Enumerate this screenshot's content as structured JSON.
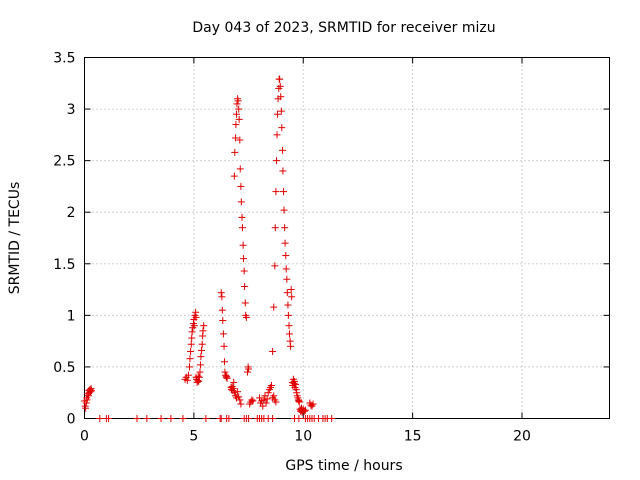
{
  "chart_data": {
    "type": "scatter",
    "title": "Day 043 of 2023, SRMTID for receiver mizu",
    "xlabel": "GPS time / hours",
    "ylabel": "SRMTID / TECUs",
    "xlim": [
      0,
      24
    ],
    "ylim": [
      0,
      3.5
    ],
    "xticks": [
      0,
      5,
      10,
      15,
      20
    ],
    "xtick_labels": [
      "0",
      "5",
      "10",
      "15",
      "20"
    ],
    "yticks": [
      0,
      0.5,
      1,
      1.5,
      2,
      2.5,
      3,
      3.5
    ],
    "ytick_labels": [
      "0",
      "0.5",
      "1",
      "1.5",
      "2",
      "2.5",
      "3",
      "3.5"
    ],
    "grid": true,
    "marker": "+",
    "color": "#e00000",
    "series": [
      {
        "name": "SRMTID",
        "points": [
          [
            0.0,
            0.17
          ],
          [
            0.03,
            0.12
          ],
          [
            0.05,
            0.1
          ],
          [
            0.08,
            0.15
          ],
          [
            0.1,
            0.2
          ],
          [
            0.12,
            0.18
          ],
          [
            0.15,
            0.24
          ],
          [
            0.18,
            0.22
          ],
          [
            0.2,
            0.27
          ],
          [
            0.22,
            0.25
          ],
          [
            0.25,
            0.28
          ],
          [
            0.28,
            0.26
          ],
          [
            0.3,
            0.29
          ],
          [
            0.32,
            0.27
          ],
          [
            0.7,
            0.0
          ],
          [
            1.0,
            0.0
          ],
          [
            1.1,
            0.0
          ],
          [
            2.4,
            0.0
          ],
          [
            2.85,
            0.0
          ],
          [
            3.5,
            0.0
          ],
          [
            3.95,
            0.0
          ],
          [
            4.5,
            0.0
          ],
          [
            4.6,
            0.38
          ],
          [
            4.65,
            0.4
          ],
          [
            4.7,
            0.37
          ],
          [
            4.75,
            0.42
          ],
          [
            4.8,
            0.5
          ],
          [
            4.82,
            0.58
          ],
          [
            4.85,
            0.65
          ],
          [
            4.88,
            0.72
          ],
          [
            4.9,
            0.78
          ],
          [
            4.92,
            0.84
          ],
          [
            4.95,
            0.88
          ],
          [
            4.98,
            0.92
          ],
          [
            5.0,
            0.96
          ],
          [
            5.02,
            0.9
          ],
          [
            5.05,
            1.0
          ],
          [
            5.08,
            1.03
          ],
          [
            5.1,
            0.98
          ],
          [
            5.1,
            0.4
          ],
          [
            5.12,
            0.38
          ],
          [
            5.15,
            0.35
          ],
          [
            5.18,
            0.37
          ],
          [
            5.2,
            0.41
          ],
          [
            5.22,
            0.36
          ],
          [
            5.25,
            0.4
          ],
          [
            5.28,
            0.45
          ],
          [
            5.3,
            0.52
          ],
          [
            5.32,
            0.6
          ],
          [
            5.35,
            0.66
          ],
          [
            5.38,
            0.72
          ],
          [
            5.4,
            0.8
          ],
          [
            5.42,
            0.85
          ],
          [
            5.45,
            0.9
          ],
          [
            5.55,
            0.0
          ],
          [
            6.2,
            0.0
          ],
          [
            6.25,
            0.0
          ],
          [
            6.5,
            0.0
          ],
          [
            6.6,
            0.0
          ],
          [
            6.25,
            1.22
          ],
          [
            6.28,
            1.18
          ],
          [
            6.3,
            1.05
          ],
          [
            6.32,
            0.95
          ],
          [
            6.35,
            0.82
          ],
          [
            6.38,
            0.7
          ],
          [
            6.4,
            0.55
          ],
          [
            6.42,
            0.45
          ],
          [
            6.45,
            0.42
          ],
          [
            6.48,
            0.4
          ],
          [
            6.5,
            0.41
          ],
          [
            6.52,
            0.39
          ],
          [
            6.7,
            0.3
          ],
          [
            6.72,
            0.28
          ],
          [
            6.75,
            0.31
          ],
          [
            6.78,
            0.27
          ],
          [
            6.8,
            0.29
          ],
          [
            6.82,
            0.35
          ],
          [
            6.85,
            2.35
          ],
          [
            6.87,
            2.58
          ],
          [
            6.9,
            2.72
          ],
          [
            6.92,
            2.85
          ],
          [
            6.95,
            2.95
          ],
          [
            6.97,
            3.05
          ],
          [
            7.0,
            3.1
          ],
          [
            7.02,
            3.08
          ],
          [
            7.05,
            3.0
          ],
          [
            7.07,
            2.9
          ],
          [
            7.1,
            2.7
          ],
          [
            7.12,
            2.42
          ],
          [
            7.15,
            2.25
          ],
          [
            7.17,
            2.1
          ],
          [
            7.2,
            1.95
          ],
          [
            7.22,
            1.85
          ],
          [
            7.25,
            1.68
          ],
          [
            7.27,
            1.55
          ],
          [
            7.3,
            1.43
          ],
          [
            7.32,
            1.28
          ],
          [
            7.35,
            1.12
          ],
          [
            7.37,
            1.0
          ],
          [
            7.4,
            0.98
          ],
          [
            6.85,
            0.25
          ],
          [
            6.9,
            0.22
          ],
          [
            6.95,
            0.2
          ],
          [
            7.0,
            0.26
          ],
          [
            7.05,
            0.21
          ],
          [
            7.1,
            0.18
          ],
          [
            7.15,
            0.14
          ],
          [
            7.45,
            0.45
          ],
          [
            7.48,
            0.5
          ],
          [
            7.5,
            0.48
          ],
          [
            7.55,
            0.14
          ],
          [
            7.6,
            0.16
          ],
          [
            7.65,
            0.18
          ],
          [
            7.7,
            0.17
          ],
          [
            7.3,
            0.0
          ],
          [
            7.4,
            0.0
          ],
          [
            7.5,
            0.0
          ],
          [
            7.9,
            0.0
          ],
          [
            8.0,
            0.0
          ],
          [
            8.1,
            0.0
          ],
          [
            8.2,
            0.0
          ],
          [
            8.4,
            0.0
          ],
          [
            8.6,
            0.0
          ],
          [
            8.0,
            0.2
          ],
          [
            8.05,
            0.15
          ],
          [
            8.1,
            0.17
          ],
          [
            8.15,
            0.12
          ],
          [
            8.2,
            0.18
          ],
          [
            8.25,
            0.22
          ],
          [
            8.3,
            0.15
          ],
          [
            8.35,
            0.19
          ],
          [
            8.4,
            0.25
          ],
          [
            8.45,
            0.28
          ],
          [
            8.5,
            0.3
          ],
          [
            8.55,
            0.32
          ],
          [
            8.6,
            0.2
          ],
          [
            8.65,
            0.22
          ],
          [
            8.7,
            0.18
          ],
          [
            8.75,
            0.16
          ],
          [
            8.6,
            0.65
          ],
          [
            8.65,
            1.08
          ],
          [
            8.7,
            1.48
          ],
          [
            8.72,
            1.85
          ],
          [
            8.75,
            2.2
          ],
          [
            8.78,
            2.5
          ],
          [
            8.8,
            2.75
          ],
          [
            8.82,
            2.95
          ],
          [
            8.85,
            3.1
          ],
          [
            8.88,
            3.2
          ],
          [
            8.9,
            3.29
          ],
          [
            8.92,
            3.29
          ],
          [
            8.95,
            3.22
          ],
          [
            8.97,
            3.12
          ],
          [
            9.0,
            2.98
          ],
          [
            9.02,
            2.82
          ],
          [
            9.05,
            2.6
          ],
          [
            9.07,
            2.4
          ],
          [
            9.1,
            2.2
          ],
          [
            9.12,
            2.02
          ],
          [
            9.15,
            1.85
          ],
          [
            9.17,
            1.7
          ],
          [
            9.2,
            1.58
          ],
          [
            9.22,
            1.45
          ],
          [
            9.25,
            1.35
          ],
          [
            9.27,
            1.22
          ],
          [
            9.3,
            1.1
          ],
          [
            9.32,
            1.0
          ],
          [
            9.35,
            0.9
          ],
          [
            9.37,
            0.82
          ],
          [
            9.4,
            0.75
          ],
          [
            9.42,
            0.7
          ],
          [
            9.45,
            1.25
          ],
          [
            9.47,
            1.18
          ],
          [
            9.5,
            0.35
          ],
          [
            9.52,
            0.32
          ],
          [
            9.55,
            0.38
          ],
          [
            9.58,
            0.34
          ],
          [
            9.6,
            0.36
          ],
          [
            9.62,
            0.3
          ],
          [
            9.65,
            0.33
          ],
          [
            9.68,
            0.28
          ],
          [
            9.7,
            0.25
          ],
          [
            9.72,
            0.22
          ],
          [
            9.75,
            0.2
          ],
          [
            9.78,
            0.18
          ],
          [
            9.8,
            0.17
          ],
          [
            9.82,
            0.16
          ],
          [
            9.85,
            0.09
          ],
          [
            9.88,
            0.07
          ],
          [
            9.9,
            0.08
          ],
          [
            9.92,
            0.1
          ],
          [
            9.95,
            0.06
          ],
          [
            9.98,
            0.08
          ],
          [
            10.0,
            0.09
          ],
          [
            10.05,
            0.07
          ],
          [
            10.1,
            0.08
          ],
          [
            10.3,
            0.15
          ],
          [
            10.35,
            0.13
          ],
          [
            10.4,
            0.12
          ],
          [
            10.45,
            0.14
          ],
          [
            9.6,
            0.0
          ],
          [
            9.8,
            0.0
          ],
          [
            10.1,
            0.0
          ],
          [
            10.2,
            0.0
          ],
          [
            10.3,
            0.0
          ],
          [
            10.4,
            0.0
          ],
          [
            10.5,
            0.0
          ],
          [
            10.7,
            0.0
          ],
          [
            10.9,
            0.0
          ],
          [
            11.0,
            0.0
          ],
          [
            11.1,
            0.0
          ],
          [
            11.3,
            0.0
          ]
        ]
      }
    ]
  }
}
